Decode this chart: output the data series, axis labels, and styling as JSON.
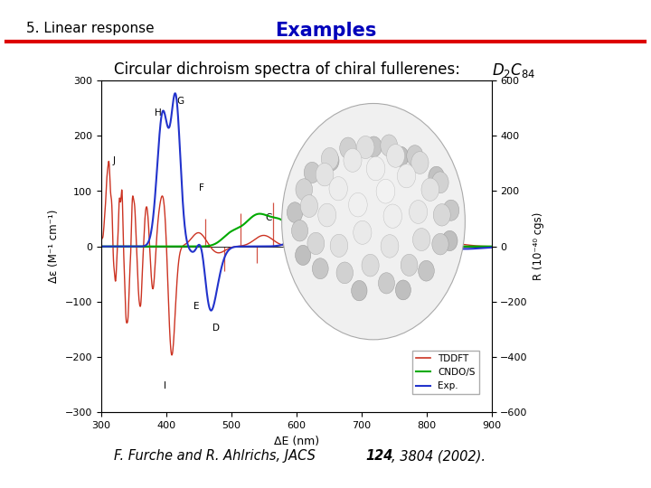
{
  "header_left": "5. Linear response",
  "header_center": "Examples",
  "header_left_color": "#000000",
  "header_center_color": "#0000BB",
  "separator_color": "#DD0000",
  "bg_color": "#FFFFFF",
  "xlabel": "ΔE (nm)",
  "ylabel_left": "Δε (M⁻¹ cm⁻¹)",
  "ylabel_right": "R (10⁻⁴⁰ cgs)",
  "xlim": [
    300,
    900
  ],
  "ylim_left": [
    -300,
    300
  ],
  "ylim_right": [
    -600,
    600
  ],
  "xticks": [
    300,
    400,
    500,
    600,
    700,
    800,
    900
  ],
  "yticks_left": [
    -300,
    -200,
    -100,
    0,
    100,
    200,
    300
  ],
  "yticks_right": [
    -600,
    -400,
    -200,
    0,
    200,
    400,
    600
  ],
  "legend_labels": [
    "TDDFT",
    "CNDO/S",
    "Exp."
  ],
  "legend_colors": [
    "#CC3322",
    "#00AA00",
    "#2222CC"
  ],
  "tddft_color": "#CC3322",
  "cndos_color": "#00AA00",
  "exp_color": "#2233CC"
}
